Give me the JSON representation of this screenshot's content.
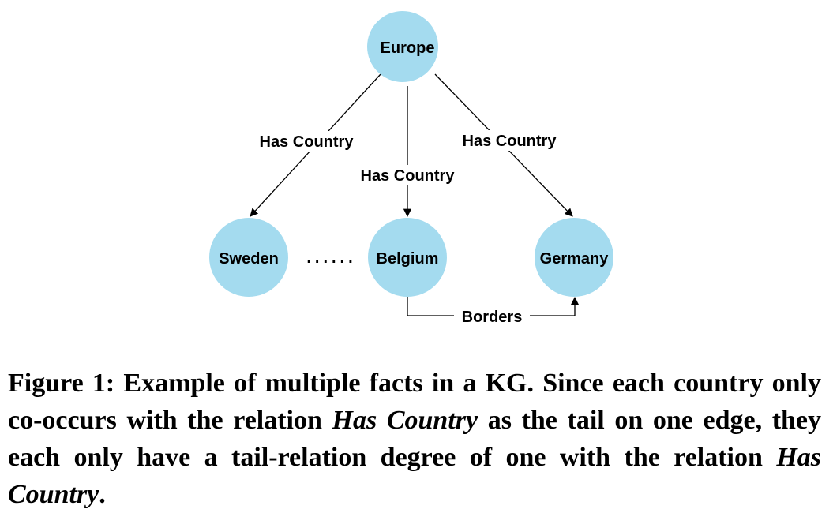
{
  "diagram": {
    "node_color": "#a4dbef",
    "edge_color": "#000000",
    "nodes": {
      "europe": "Europe",
      "sweden": "Sweden",
      "belgium": "Belgium",
      "germany": "Germany"
    },
    "edges": {
      "europe_sweden": "Has Country",
      "europe_belgium": "Has Country",
      "europe_germany": "Has Country",
      "belgium_germany": "Borders"
    },
    "ellipsis": "......"
  },
  "caption": {
    "label": "Figure 1:",
    "part1": "Example of multiple facts in a KG. Since each country only co-occurs with the relation",
    "italic1": "Has Country",
    "part2": "as the tail on one edge, they each only have a tail-relation degree of one with the relation",
    "italic2": "Has Country",
    "end": "."
  }
}
